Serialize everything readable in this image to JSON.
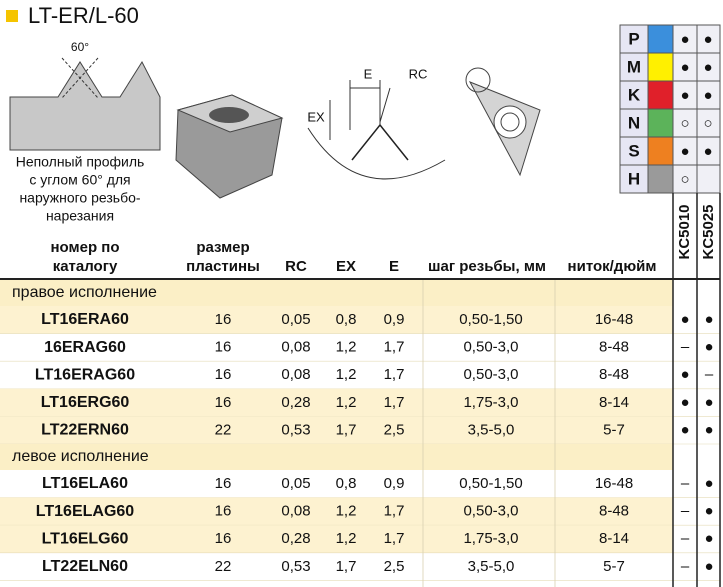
{
  "title": "LT-ER/L-60",
  "profile": {
    "angle": "60°",
    "caption": [
      "Неполный профиль",
      "с углом 60° для",
      "наружного резьбо-",
      "нарезания"
    ]
  },
  "dimensions": {
    "e": "E",
    "rc": "RC",
    "ex": "EX"
  },
  "materials": [
    {
      "label": "P",
      "color": "#3b8fdc",
      "kc5010": "●",
      "kc5025": "●"
    },
    {
      "label": "M",
      "color": "#fff000",
      "kc5010": "●",
      "kc5025": "●"
    },
    {
      "label": "K",
      "color": "#e0202a",
      "kc5010": "●",
      "kc5025": "●"
    },
    {
      "label": "N",
      "color": "#5cb35a",
      "kc5010": "○",
      "kc5025": "○"
    },
    {
      "label": "S",
      "color": "#ee8020",
      "kc5010": "●",
      "kc5025": "●"
    },
    {
      "label": "H",
      "color": "#9a9a9a",
      "kc5010": "○"
    }
  ],
  "header": {
    "catalog": [
      "номер по",
      "каталогу"
    ],
    "size": [
      "размер",
      "пластины"
    ],
    "rc": "RC",
    "ex": "EX",
    "e": "E",
    "pitch": "шаг резьбы, мм",
    "tpi": "ниток/дюйм",
    "grades": [
      "KC5010",
      "KC5025"
    ]
  },
  "sections": [
    {
      "title": "правое исполнение",
      "rows": [
        {
          "cells": [
            "LT16ERA60",
            "16",
            "0,05",
            "0,8",
            "0,9",
            "0,50-1,50",
            "16-48",
            "●",
            "●"
          ],
          "highlight": true
        },
        {
          "cells": [
            "16ERAG60",
            "16",
            "0,08",
            "1,2",
            "1,7",
            "0,50-3,0",
            "8-48",
            "–",
            "●"
          ],
          "highlight": false
        },
        {
          "cells": [
            "LT16ERAG60",
            "16",
            "0,08",
            "1,2",
            "1,7",
            "0,50-3,0",
            "8-48",
            "●",
            "–"
          ],
          "highlight": false
        },
        {
          "cells": [
            "LT16ERG60",
            "16",
            "0,28",
            "1,2",
            "1,7",
            "1,75-3,0",
            "8-14",
            "●",
            "●"
          ],
          "highlight": true
        },
        {
          "cells": [
            "LT22ERN60",
            "22",
            "0,53",
            "1,7",
            "2,5",
            "3,5-5,0",
            "5-7",
            "●",
            "●"
          ],
          "highlight": true
        }
      ]
    },
    {
      "title": "левое исполнение",
      "rows": [
        {
          "cells": [
            "LT16ELA60",
            "16",
            "0,05",
            "0,8",
            "0,9",
            "0,50-1,50",
            "16-48",
            "–",
            "●"
          ],
          "highlight": false
        },
        {
          "cells": [
            "LT16ELAG60",
            "16",
            "0,08",
            "1,2",
            "1,7",
            "0,50-3,0",
            "8-48",
            "–",
            "●"
          ],
          "highlight": true
        },
        {
          "cells": [
            "LT16ELG60",
            "16",
            "0,28",
            "1,2",
            "1,7",
            "1,75-3,0",
            "8-14",
            "–",
            "●"
          ],
          "highlight": true
        },
        {
          "cells": [
            "LT22ELN60",
            "22",
            "0,53",
            "1,7",
            "2,5",
            "3,5-5,0",
            "5-7",
            "–",
            "●"
          ],
          "highlight": false
        }
      ]
    }
  ]
}
